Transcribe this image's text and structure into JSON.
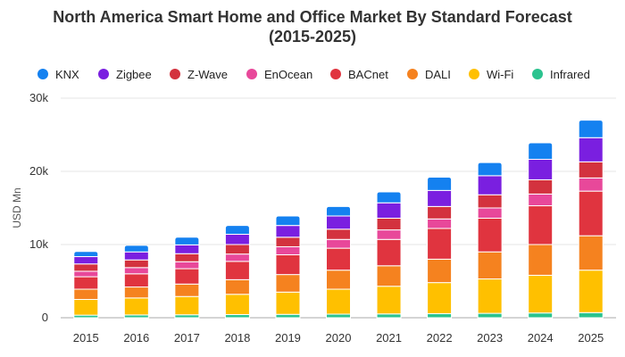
{
  "chart_data": {
    "type": "bar",
    "stacked": true,
    "title_line1": "North America Smart Home and Office Market By Standard Forecast",
    "title_line2": "(2015-2025)",
    "xlabel": "",
    "ylabel": "USD Mn",
    "ylim": [
      0,
      30000
    ],
    "yticks": [
      {
        "value": 0,
        "label": "0"
      },
      {
        "value": 10000,
        "label": "10k"
      },
      {
        "value": 20000,
        "label": "20k"
      },
      {
        "value": 30000,
        "label": "30k"
      }
    ],
    "grid": true,
    "legend_position": "top",
    "categories": [
      "2015",
      "2016",
      "2017",
      "2018",
      "2019",
      "2020",
      "2021",
      "2022",
      "2023",
      "2024",
      "2025"
    ],
    "series": [
      {
        "name": "Infrared",
        "color": "#2bc38f",
        "values": [
          350,
          380,
          400,
          430,
          460,
          490,
          520,
          560,
          600,
          650,
          700
        ]
      },
      {
        "name": "Wi-Fi",
        "color": "#ffc000",
        "values": [
          2150,
          2320,
          2500,
          2770,
          3040,
          3410,
          3780,
          4240,
          4700,
          5150,
          5800
        ]
      },
      {
        "name": "DALI",
        "color": "#f5821f",
        "values": [
          1400,
          1500,
          1700,
          2000,
          2400,
          2600,
          2800,
          3200,
          3700,
          4200,
          4700
        ]
      },
      {
        "name": "BACnet",
        "color": "#e0343f",
        "values": [
          1700,
          1800,
          2100,
          2500,
          2700,
          3000,
          3600,
          4200,
          4600,
          5300,
          6100
        ]
      },
      {
        "name": "EnOcean",
        "color": "#e8489a",
        "values": [
          750,
          850,
          950,
          1000,
          1100,
          1200,
          1300,
          1300,
          1400,
          1600,
          1800
        ]
      },
      {
        "name": "Z-Wave",
        "color": "#d3323e",
        "values": [
          1000,
          1050,
          1100,
          1300,
          1300,
          1400,
          1600,
          1700,
          1800,
          1950,
          2200
        ]
      },
      {
        "name": "Zigbee",
        "color": "#7a1fe0",
        "values": [
          1000,
          1100,
          1200,
          1400,
          1600,
          1800,
          2100,
          2200,
          2600,
          2800,
          3300
        ]
      },
      {
        "name": "KNX",
        "color": "#1481f0",
        "values": [
          700,
          900,
          1050,
          1200,
          1300,
          1300,
          1500,
          1800,
          1800,
          2250,
          2400
        ]
      }
    ],
    "legend_order": [
      "KNX",
      "Zigbee",
      "Z-Wave",
      "EnOcean",
      "BACnet",
      "DALI",
      "Wi-Fi",
      "Infrared"
    ]
  }
}
